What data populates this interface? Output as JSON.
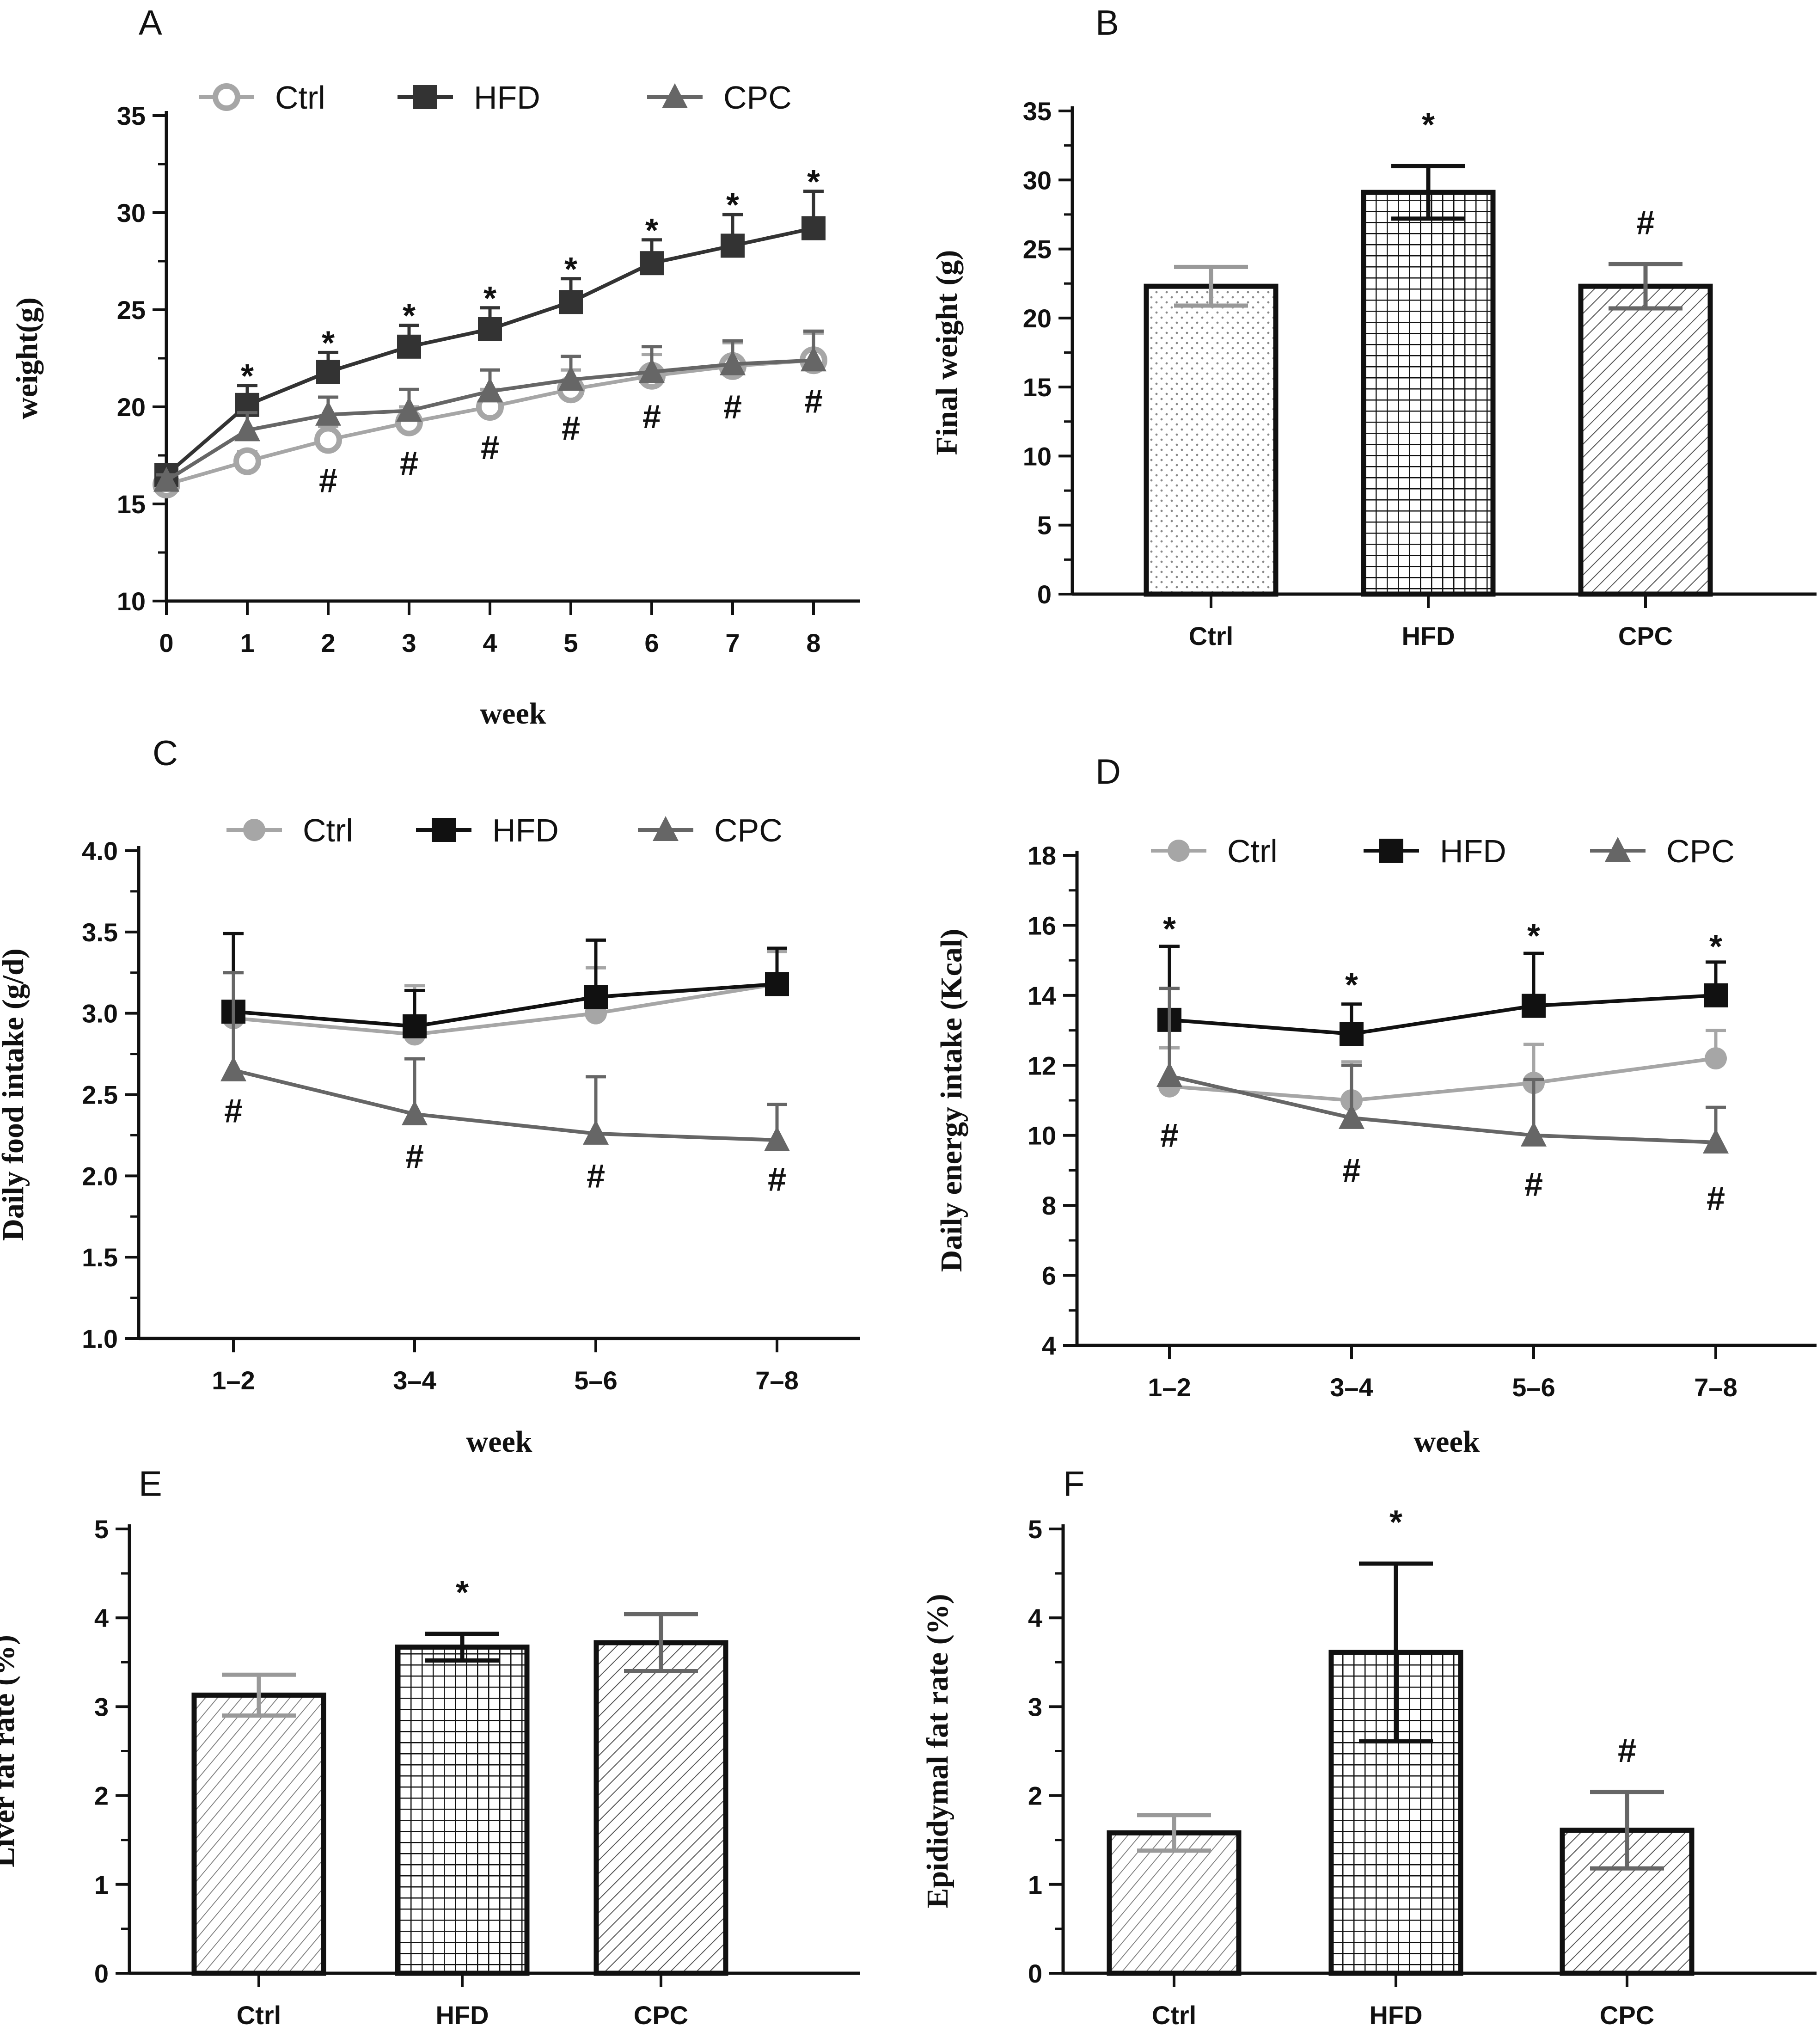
{
  "chart_data": [
    {
      "id": "A",
      "panel_label": "A",
      "type": "line",
      "xlabel": "week",
      "ylabel": "weight(g)",
      "x": [
        0,
        1,
        2,
        3,
        4,
        5,
        6,
        7,
        8
      ],
      "x_tick_labels": [
        "0",
        "1",
        "2",
        "3",
        "4",
        "5",
        "6",
        "7",
        "8"
      ],
      "ylim": [
        10,
        35
      ],
      "y_ticks": [
        10,
        15,
        20,
        25,
        30,
        35
      ],
      "y_tick_labels": [
        "10",
        "15",
        "20",
        "25",
        "30",
        "35"
      ],
      "legend": [
        "Ctrl",
        "HFD",
        "CPC"
      ],
      "series": [
        {
          "name": "Ctrl",
          "color": "#a6a6a6",
          "marker": "circle-open",
          "values": [
            16.0,
            17.2,
            18.3,
            19.2,
            20.0,
            20.9,
            21.6,
            22.1,
            22.4
          ],
          "errors": [
            0.3,
            0.5,
            0.7,
            0.8,
            0.9,
            1.0,
            1.1,
            1.2,
            1.4
          ]
        },
        {
          "name": "HFD",
          "color": "#333333",
          "marker": "square",
          "values": [
            16.5,
            20.1,
            21.8,
            23.1,
            24.0,
            25.4,
            27.4,
            28.3,
            29.2
          ],
          "errors": [
            0.4,
            1.0,
            1.0,
            1.1,
            1.1,
            1.2,
            1.2,
            1.6,
            1.9
          ]
        },
        {
          "name": "CPC",
          "color": "#666666",
          "marker": "triangle",
          "values": [
            16.2,
            18.8,
            19.6,
            19.8,
            20.8,
            21.4,
            21.8,
            22.2,
            22.4
          ],
          "errors": [
            0.3,
            0.9,
            0.9,
            1.1,
            1.1,
            1.2,
            1.3,
            1.2,
            1.5
          ]
        }
      ],
      "annotations": [
        {
          "text": "*",
          "x": 1,
          "y": 21.6
        },
        {
          "text": "*",
          "x": 2,
          "y": 23.3
        },
        {
          "text": "*",
          "x": 3,
          "y": 24.7
        },
        {
          "text": "*",
          "x": 4,
          "y": 25.6
        },
        {
          "text": "*",
          "x": 5,
          "y": 27.1
        },
        {
          "text": "*",
          "x": 6,
          "y": 29.1
        },
        {
          "text": "*",
          "x": 7,
          "y": 30.4
        },
        {
          "text": "*",
          "x": 8,
          "y": 31.6
        },
        {
          "text": "#",
          "x": 2,
          "y": 16.2
        },
        {
          "text": "#",
          "x": 3,
          "y": 17.1
        },
        {
          "text": "#",
          "x": 4,
          "y": 17.9
        },
        {
          "text": "#",
          "x": 5,
          "y": 18.9
        },
        {
          "text": "#",
          "x": 6,
          "y": 19.5
        },
        {
          "text": "#",
          "x": 7,
          "y": 20.0
        },
        {
          "text": "#",
          "x": 8,
          "y": 20.3
        }
      ]
    },
    {
      "id": "B",
      "panel_label": "B",
      "type": "bar",
      "xlabel": "",
      "ylabel": "Final weight (g)",
      "categories": [
        "Ctrl",
        "HFD",
        "CPC"
      ],
      "values": [
        22.3,
        29.1,
        22.3
      ],
      "errors": [
        1.4,
        1.9,
        1.6
      ],
      "patterns": [
        "dots",
        "grid",
        "diag"
      ],
      "ylim": [
        0,
        35
      ],
      "y_ticks": [
        0,
        5,
        10,
        15,
        20,
        25,
        30,
        35
      ],
      "y_tick_labels": [
        "0",
        "5",
        "10",
        "15",
        "20",
        "25",
        "30",
        "35"
      ],
      "annotations": [
        {
          "text": "*",
          "index": 1
        },
        {
          "text": "#",
          "index": 2
        }
      ]
    },
    {
      "id": "C",
      "panel_label": "C",
      "type": "line",
      "xlabel": "week",
      "ylabel": "Daily food intake (g/d)",
      "x_tick_labels": [
        "1–2",
        "3–4",
        "5–6",
        "7–8"
      ],
      "ylim": [
        1.0,
        4.0
      ],
      "y_ticks": [
        1.0,
        1.5,
        2.0,
        2.5,
        3.0,
        3.5,
        4.0
      ],
      "y_tick_labels": [
        "1.0",
        "1.5",
        "2.0",
        "2.5",
        "3.0",
        "3.5",
        "4.0"
      ],
      "legend": [
        "Ctrl",
        "HFD",
        "CPC"
      ],
      "series": [
        {
          "name": "Ctrl",
          "color": "#a6a6a6",
          "marker": "circle",
          "values": [
            2.97,
            2.87,
            3.0,
            3.18
          ],
          "errors": [
            0.28,
            0.3,
            0.28,
            0.2
          ]
        },
        {
          "name": "HFD",
          "color": "#111111",
          "marker": "square",
          "values": [
            3.01,
            2.92,
            3.1,
            3.18
          ],
          "errors": [
            0.48,
            0.22,
            0.35,
            0.22
          ]
        },
        {
          "name": "CPC",
          "color": "#666666",
          "marker": "triangle",
          "values": [
            2.65,
            2.38,
            2.26,
            2.22
          ],
          "errors": [
            0.6,
            0.34,
            0.35,
            0.22
          ]
        }
      ],
      "annotations": [
        {
          "text": "#",
          "x": 0,
          "y": 2.4
        },
        {
          "text": "#",
          "x": 1,
          "y": 2.12
        },
        {
          "text": "#",
          "x": 2,
          "y": 2.0
        },
        {
          "text": "#",
          "x": 3,
          "y": 1.98
        }
      ]
    },
    {
      "id": "D",
      "panel_label": "D",
      "type": "line",
      "xlabel": "week",
      "ylabel": "Daily energy intake (Kcal)",
      "x_tick_labels": [
        "1–2",
        "3–4",
        "5–6",
        "7–8"
      ],
      "ylim": [
        4,
        18
      ],
      "y_ticks": [
        4,
        6,
        8,
        10,
        12,
        14,
        16,
        18
      ],
      "y_tick_labels": [
        "4",
        "6",
        "8",
        "10",
        "12",
        "14",
        "16",
        "18"
      ],
      "legend": [
        "Ctrl",
        "HFD",
        "CPC"
      ],
      "series": [
        {
          "name": "Ctrl",
          "color": "#a6a6a6",
          "marker": "circle",
          "values": [
            11.4,
            11.0,
            11.5,
            12.2
          ],
          "errors": [
            1.1,
            1.1,
            1.1,
            0.8
          ]
        },
        {
          "name": "HFD",
          "color": "#111111",
          "marker": "square",
          "values": [
            13.3,
            12.9,
            13.7,
            14.0
          ],
          "errors": [
            2.1,
            0.85,
            1.5,
            0.95
          ]
        },
        {
          "name": "CPC",
          "color": "#666666",
          "marker": "triangle",
          "values": [
            11.7,
            10.5,
            10.0,
            9.8
          ],
          "errors": [
            2.5,
            1.5,
            1.6,
            1.0
          ]
        }
      ],
      "annotations": [
        {
          "text": "*",
          "x": 0,
          "y": 15.9
        },
        {
          "text": "*",
          "x": 1,
          "y": 14.3
        },
        {
          "text": "*",
          "x": 2,
          "y": 15.7
        },
        {
          "text": "*",
          "x": 3,
          "y": 15.4
        },
        {
          "text": "#",
          "x": 0,
          "y": 10.0
        },
        {
          "text": "#",
          "x": 1,
          "y": 9.0
        },
        {
          "text": "#",
          "x": 2,
          "y": 8.6
        },
        {
          "text": "#",
          "x": 3,
          "y": 8.2
        }
      ]
    },
    {
      "id": "E",
      "panel_label": "E",
      "type": "bar",
      "xlabel": "",
      "ylabel": "Liver fat rate (%)",
      "categories": [
        "Ctrl",
        "HFD",
        "CPC"
      ],
      "values": [
        3.13,
        3.67,
        3.72
      ],
      "errors": [
        0.23,
        0.15,
        0.32
      ],
      "patterns": [
        "diag-right",
        "grid",
        "diag"
      ],
      "ylim": [
        0,
        5
      ],
      "y_ticks": [
        0,
        1,
        2,
        3,
        4,
        5
      ],
      "y_tick_labels": [
        "0",
        "1",
        "2",
        "3",
        "4",
        "5"
      ],
      "annotations": [
        {
          "text": "*",
          "index": 1
        }
      ]
    },
    {
      "id": "F",
      "panel_label": "F",
      "type": "bar",
      "xlabel": "",
      "ylabel": "Epididymal fat rate (%)",
      "categories": [
        "Ctrl",
        "HFD",
        "CPC"
      ],
      "values": [
        1.58,
        3.61,
        1.61
      ],
      "errors": [
        0.2,
        1.0,
        0.43
      ],
      "patterns": [
        "diag-right",
        "grid",
        "diag"
      ],
      "ylim": [
        0,
        5
      ],
      "y_ticks": [
        0,
        1,
        2,
        3,
        4,
        5
      ],
      "y_tick_labels": [
        "0",
        "1",
        "2",
        "3",
        "4",
        "5"
      ],
      "annotations": [
        {
          "text": "*",
          "index": 1
        },
        {
          "text": "#",
          "index": 2
        }
      ]
    }
  ]
}
